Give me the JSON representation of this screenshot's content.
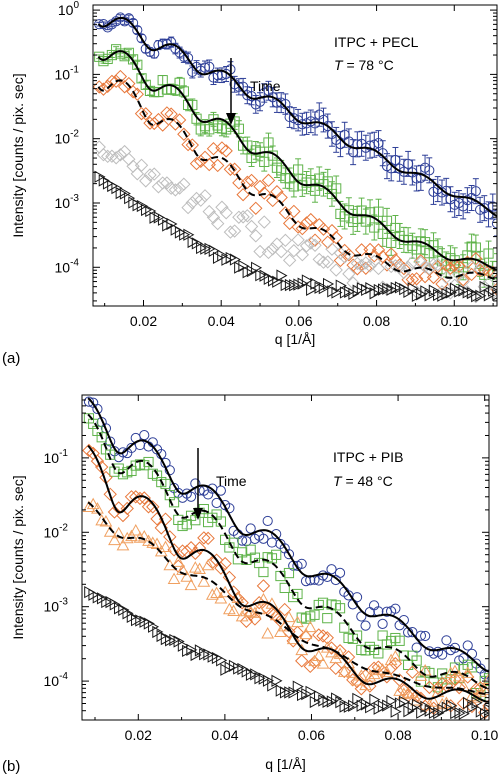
{
  "figure": {
    "panels": [
      {
        "label": "(a)"
      },
      {
        "label": "(b)"
      }
    ]
  },
  "colors": {
    "blue": "#2e3f98",
    "green": "#5fb34a",
    "orange": "#e8773a",
    "light_orange": "#f0a060",
    "gray": "#bdbdbd",
    "black": "#1a1a1a",
    "fit_solid": "#000000",
    "fit_dashed": "#000000"
  },
  "chart_data": [
    {
      "type": "scatter",
      "panel_label": "(a)",
      "xlabel": "q [1/Å]",
      "ylabel": "Intensity [counts / pix. sec]",
      "yscale": "log",
      "xlim": [
        0.007,
        0.111
      ],
      "ylim": [
        2.5e-05,
        1.2
      ],
      "xticks": [
        0.02,
        0.04,
        0.06,
        0.08,
        0.1
      ],
      "xtick_labels": [
        "0.02",
        "0.04",
        "0.06",
        "0.08",
        "0.10"
      ],
      "yticks": [
        1,
        0.1,
        0.01,
        0.001,
        0.0001
      ],
      "ytick_labels": [
        {
          "base": "10",
          "exp": "0"
        },
        {
          "base": "10",
          "exp": "-1"
        },
        {
          "base": "10",
          "exp": "-2"
        },
        {
          "base": "10",
          "exp": "-3"
        },
        {
          "base": "10",
          "exp": "-4"
        }
      ],
      "annotation": {
        "line1": "ITPC + PECL",
        "line2_var": "T",
        "line2_rest": " = 78 °C"
      },
      "arrow_label": "Time",
      "grid": false,
      "legend": "none",
      "series": [
        {
          "marker": "circle",
          "color": "blue",
          "errorbars": true,
          "fit": "solid",
          "I0": 0.9,
          "plateau": 0.0001,
          "decay": 0.014,
          "amp": 0.35,
          "period": 0.0128,
          "phase": 0.0155,
          "osc_decay": 0.085,
          "noise": 0.12
        },
        {
          "marker": "square",
          "color": "green",
          "errorbars": true,
          "fit": "solid",
          "I0": 0.3,
          "plateau": 8e-05,
          "decay": 0.0108,
          "amp": 0.4,
          "period": 0.0128,
          "phase": 0.0155,
          "osc_decay": 0.08,
          "noise": 0.15
        },
        {
          "marker": "diamond",
          "color": "orange",
          "errorbars": false,
          "fit": "dashed",
          "I0": 0.11,
          "plateau": 7e-05,
          "decay": 0.0095,
          "amp": 0.45,
          "period": 0.0128,
          "phase": 0.0155,
          "osc_decay": 0.07,
          "noise": 0.17
        },
        {
          "marker": "diamond",
          "color": "gray",
          "errorbars": false,
          "fit": "none",
          "I0": 0.008,
          "plateau": 6e-05,
          "decay": 0.012,
          "amp": 0.12,
          "period": 0.0128,
          "phase": 0.0155,
          "osc_decay": 0.04,
          "noise": 0.2
        },
        {
          "marker": "triangle-right",
          "color": "black",
          "errorbars": false,
          "fit": "none",
          "I0": 0.0025,
          "plateau": 4.2e-05,
          "decay": 0.01,
          "amp": 0.0,
          "period": 0.0128,
          "phase": 0.0155,
          "osc_decay": 0.04,
          "noise": 0.06
        }
      ]
    },
    {
      "type": "scatter",
      "panel_label": "(b)",
      "xlabel": "q [1/Å]",
      "ylabel": "Intensity [counts / pix. sec]",
      "yscale": "log",
      "xlim": [
        0.007,
        0.101
      ],
      "ylim": [
        3e-05,
        0.7
      ],
      "xticks": [
        0.02,
        0.04,
        0.06,
        0.08,
        0.1
      ],
      "xtick_labels": [
        "0.02",
        "0.04",
        "0.06",
        "0.08",
        "0.10"
      ],
      "yticks": [
        0.1,
        0.01,
        0.001,
        0.0001
      ],
      "ytick_labels": [
        {
          "base": "10",
          "exp": "-1"
        },
        {
          "base": "10",
          "exp": "-2"
        },
        {
          "base": "10",
          "exp": "-3"
        },
        {
          "base": "10",
          "exp": "-4"
        }
      ],
      "annotation": {
        "line1": "ITPC + PIB",
        "line2_var": "T",
        "line2_rest": " = 48 °C"
      },
      "arrow_label": "Time",
      "grid": false,
      "legend": "none",
      "series": [
        {
          "marker": "circle",
          "color": "blue",
          "errorbars": false,
          "fit": "solid",
          "I0": 0.42,
          "plateau": 0.0001,
          "decay": 0.0105,
          "amp": 0.5,
          "period": 0.0143,
          "phase": 0.0225,
          "osc_decay": 0.09,
          "noise": 0.12
        },
        {
          "marker": "square",
          "color": "green",
          "errorbars": false,
          "fit": "dashed",
          "I0": 0.25,
          "plateau": 8e-05,
          "decay": 0.0095,
          "amp": 0.52,
          "period": 0.0143,
          "phase": 0.0225,
          "osc_decay": 0.08,
          "noise": 0.14
        },
        {
          "marker": "diamond",
          "color": "orange",
          "errorbars": false,
          "fit": "solid",
          "I0": 0.09,
          "plateau": 6e-05,
          "decay": 0.0088,
          "amp": 0.6,
          "period": 0.0143,
          "phase": 0.0225,
          "osc_decay": 0.07,
          "noise": 0.18
        },
        {
          "marker": "triangle-up",
          "color": "light_orange",
          "errorbars": false,
          "fit": "dashed",
          "I0": 0.02,
          "plateau": 6e-05,
          "decay": 0.012,
          "amp": 0.25,
          "period": 0.0143,
          "phase": 0.0225,
          "osc_decay": 0.05,
          "noise": 0.2
        },
        {
          "marker": "triangle-right",
          "color": "black",
          "errorbars": false,
          "fit": "none",
          "I0": 0.0016,
          "plateau": 4.2e-05,
          "decay": 0.012,
          "amp": 0.0,
          "period": 0.0143,
          "phase": 0.0225,
          "osc_decay": 0.04,
          "noise": 0.06
        }
      ]
    }
  ]
}
